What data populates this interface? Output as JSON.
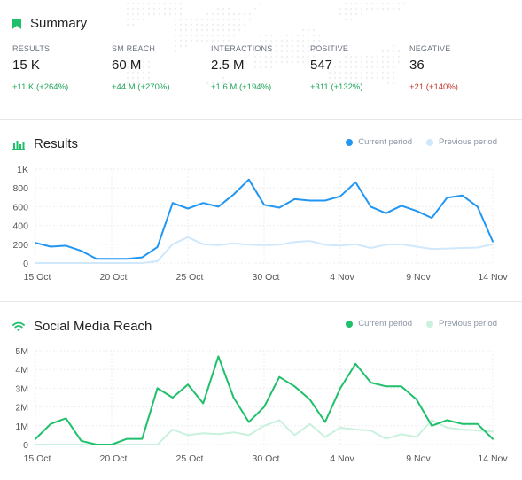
{
  "summary": {
    "title": "Summary",
    "metrics": [
      {
        "label": "RESULTS",
        "value": "15 K",
        "change": "+11 K (+264%)",
        "trend": "up"
      },
      {
        "label": "SM REACH",
        "value": "60 M",
        "change": "+44 M (+270%)",
        "trend": "up"
      },
      {
        "label": "INTERACTIONS",
        "value": "2.5 M",
        "change": "+1.6 M (+194%)",
        "trend": "up"
      },
      {
        "label": "POSITIVE",
        "value": "547",
        "change": "+311 (+132%)",
        "trend": "up"
      },
      {
        "label": "NEGATIVE",
        "value": "36",
        "change": "+21 (+140%)",
        "trend": "down"
      }
    ]
  },
  "results": {
    "title": "Results",
    "legend_current": "Current period",
    "legend_previous": "Previous period"
  },
  "reach": {
    "title": "Social Media Reach",
    "legend_current": "Current period",
    "legend_previous": "Previous period"
  },
  "colors": {
    "blue": "#2196f3",
    "blue_light": "#cfe8fc",
    "green": "#1fbf6b",
    "green_light": "#c9f1dd",
    "positive": "#22a45a",
    "negative": "#c0392b"
  },
  "chart_data": [
    {
      "type": "line",
      "title": "Results",
      "x_tick_labels": [
        "15 Oct",
        "20 Oct",
        "25 Oct",
        "30 Oct",
        "4 Nov",
        "9 Nov",
        "14 Nov"
      ],
      "x_days": [
        0,
        1,
        2,
        3,
        4,
        5,
        6,
        7,
        8,
        9,
        10,
        11,
        12,
        13,
        14,
        15,
        16,
        17,
        18,
        19,
        20,
        21,
        22,
        23,
        24,
        25,
        26,
        27,
        28,
        29,
        30
      ],
      "y_tick_labels": [
        "0",
        "200",
        "400",
        "600",
        "800",
        "1K"
      ],
      "ylim": [
        0,
        1000
      ],
      "series": [
        {
          "name": "Current period",
          "values": [
            215,
            175,
            185,
            130,
            45,
            45,
            45,
            60,
            170,
            640,
            580,
            640,
            600,
            730,
            890,
            620,
            590,
            680,
            665,
            665,
            710,
            860,
            600,
            530,
            610,
            555,
            480,
            695,
            720,
            600,
            230
          ]
        },
        {
          "name": "Previous period",
          "values": [
            0,
            0,
            0,
            0,
            0,
            0,
            0,
            0,
            20,
            200,
            275,
            200,
            190,
            210,
            195,
            190,
            195,
            225,
            235,
            195,
            185,
            200,
            160,
            195,
            200,
            175,
            150,
            155,
            160,
            165,
            200
          ]
        }
      ]
    },
    {
      "type": "line",
      "title": "Social Media Reach",
      "x_tick_labels": [
        "15 Oct",
        "20 Oct",
        "25 Oct",
        "30 Oct",
        "4 Nov",
        "9 Nov",
        "14 Nov"
      ],
      "x_days": [
        0,
        1,
        2,
        3,
        4,
        5,
        6,
        7,
        8,
        9,
        10,
        11,
        12,
        13,
        14,
        15,
        16,
        17,
        18,
        19,
        20,
        21,
        22,
        23,
        24,
        25,
        26,
        27,
        28,
        29,
        30
      ],
      "y_tick_labels": [
        "0",
        "1M",
        "2M",
        "3M",
        "4M",
        "5M"
      ],
      "ylim": [
        0,
        5000000
      ],
      "series": [
        {
          "name": "Current period",
          "values": [
            300000,
            1100000,
            1400000,
            200000,
            0,
            0,
            300000,
            300000,
            3000000,
            2500000,
            3200000,
            2200000,
            4700000,
            2500000,
            1200000,
            2000000,
            3600000,
            3100000,
            2400000,
            1200000,
            3000000,
            4300000,
            3300000,
            3100000,
            3100000,
            2400000,
            1000000,
            1300000,
            1100000,
            1100000,
            300000
          ]
        },
        {
          "name": "Previous period",
          "values": [
            0,
            0,
            0,
            0,
            0,
            0,
            0,
            0,
            0,
            800000,
            500000,
            600000,
            550000,
            650000,
            500000,
            1000000,
            1300000,
            500000,
            1100000,
            400000,
            900000,
            800000,
            750000,
            300000,
            550000,
            400000,
            1300000,
            900000,
            800000,
            750000,
            700000
          ]
        }
      ]
    }
  ]
}
